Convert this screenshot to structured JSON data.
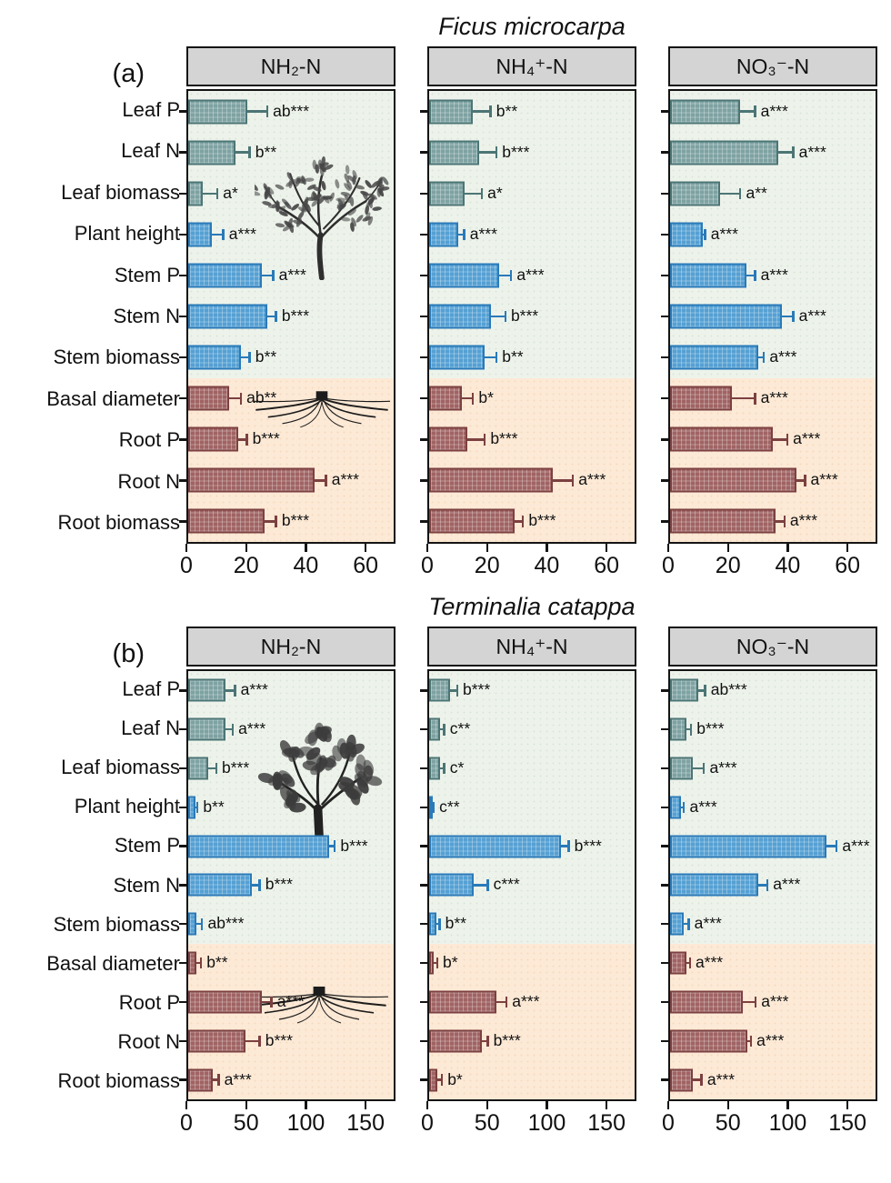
{
  "panels": [
    {
      "letter": "(a)",
      "title": "Ficus microcarpa"
    },
    {
      "letter": "(b)",
      "title": "Terminalia catappa"
    }
  ],
  "category_groups": [
    "leaf",
    "leaf",
    "leaf",
    "stem",
    "stem",
    "stem",
    "stem",
    "root",
    "root",
    "root",
    "root"
  ],
  "colors": {
    "leaf_fill": "#7ea2a2",
    "leaf_border": "#4c7575",
    "stem_fill": "#55a0d3",
    "stem_border": "#2a7ab8",
    "root_fill": "#a06363",
    "root_border": "#7c4040",
    "shoot_zone_bg": "#edf3eb",
    "root_zone_bg": "#fce9d6",
    "header_bg": "#d4d4d4",
    "frame": "#141414"
  },
  "chart_data": [
    {
      "type": "bar",
      "orientation": "horizontal",
      "panel": "(a)",
      "panel_title": "Ficus microcarpa",
      "group_header": "NH₂-N",
      "categories": [
        "Leaf P",
        "Leaf N",
        "Leaf biomass",
        "Plant height",
        "Stem P",
        "Stem N",
        "Stem biomass",
        "Basal diameter",
        "Root P",
        "Root N",
        "Root biomass"
      ],
      "values": [
        20,
        16,
        5,
        8,
        25,
        27,
        18,
        14,
        17,
        43,
        26
      ],
      "errors": [
        7,
        5,
        5,
        4,
        4,
        3,
        3,
        4,
        3,
        4,
        4
      ],
      "sig_labels": [
        "ab***",
        "b**",
        "a*",
        "a***",
        "a***",
        "b***",
        "b**",
        "ab**",
        "b***",
        "a***",
        "b***"
      ],
      "xlim": [
        0,
        70
      ],
      "xticks": [
        0,
        20,
        40,
        60
      ]
    },
    {
      "type": "bar",
      "orientation": "horizontal",
      "panel": "(a)",
      "panel_title": "Ficus microcarpa",
      "group_header": "NH₄⁺-N",
      "categories": [
        "Leaf P",
        "Leaf N",
        "Leaf biomass",
        "Plant height",
        "Stem P",
        "Stem N",
        "Stem biomass",
        "Basal diameter",
        "Root P",
        "Root N",
        "Root biomass"
      ],
      "values": [
        15,
        17,
        12,
        10,
        24,
        21,
        19,
        11,
        13,
        42,
        29
      ],
      "errors": [
        6,
        6,
        6,
        2,
        4,
        5,
        4,
        4,
        6,
        7,
        3
      ],
      "sig_labels": [
        "b**",
        "b***",
        "a*",
        "a***",
        "a***",
        "b***",
        "b**",
        "b*",
        "b***",
        "a***",
        "b***"
      ],
      "xlim": [
        0,
        70
      ],
      "xticks": [
        0,
        20,
        40,
        60
      ]
    },
    {
      "type": "bar",
      "orientation": "horizontal",
      "panel": "(a)",
      "panel_title": "Ficus microcarpa",
      "group_header": "NO₃⁻-N",
      "categories": [
        "Leaf P",
        "Leaf N",
        "Leaf biomass",
        "Plant height",
        "Stem P",
        "Stem N",
        "Stem biomass",
        "Basal diameter",
        "Root P",
        "Root N",
        "Root biomass"
      ],
      "values": [
        24,
        37,
        17,
        11,
        26,
        38,
        30,
        21,
        35,
        43,
        36
      ],
      "errors": [
        5,
        5,
        7,
        1,
        3,
        4,
        2,
        8,
        5,
        3,
        3
      ],
      "sig_labels": [
        "a***",
        "a***",
        "a**",
        "a***",
        "a***",
        "a***",
        "a***",
        "a***",
        "a***",
        "a***",
        "a***"
      ],
      "xlim": [
        0,
        70
      ],
      "xticks": [
        0,
        20,
        40,
        60
      ]
    },
    {
      "type": "bar",
      "orientation": "horizontal",
      "panel": "(b)",
      "panel_title": "Terminalia catappa",
      "group_header": "NH₂-N",
      "categories": [
        "Leaf P",
        "Leaf N",
        "Leaf biomass",
        "Plant height",
        "Stem P",
        "Stem N",
        "Stem biomass",
        "Basal diameter",
        "Root P",
        "Root N",
        "Root biomass"
      ],
      "values": [
        32,
        32,
        17,
        6,
        120,
        54,
        7,
        7,
        63,
        49,
        21
      ],
      "errors": [
        8,
        6,
        7,
        2,
        5,
        7,
        5,
        4,
        8,
        12,
        5
      ],
      "sig_labels": [
        "a***",
        "a***",
        "b***",
        "b**",
        "b***",
        "b***",
        "ab***",
        "b**",
        "a***",
        "b***",
        "a***"
      ],
      "xlim": [
        0,
        175
      ],
      "xticks": [
        0,
        50,
        100,
        150
      ]
    },
    {
      "type": "bar",
      "orientation": "horizontal",
      "panel": "(b)",
      "panel_title": "Terminalia catappa",
      "group_header": "NH₄⁺-N",
      "categories": [
        "Leaf P",
        "Leaf N",
        "Leaf biomass",
        "Plant height",
        "Stem P",
        "Stem N",
        "Stem biomass",
        "Basal diameter",
        "Root P",
        "Root N",
        "Root biomass"
      ],
      "values": [
        18,
        9,
        9,
        2,
        112,
        38,
        6,
        4,
        57,
        45,
        7
      ],
      "errors": [
        6,
        4,
        4,
        2,
        7,
        12,
        3,
        3,
        9,
        5,
        4
      ],
      "sig_labels": [
        "b***",
        "c**",
        "c*",
        "c**",
        "b***",
        "c***",
        "b**",
        "b*",
        "a***",
        "b***",
        "b*"
      ],
      "xlim": [
        0,
        175
      ],
      "xticks": [
        0,
        50,
        100,
        150
      ]
    },
    {
      "type": "bar",
      "orientation": "horizontal",
      "panel": "(b)",
      "panel_title": "Terminalia catappa",
      "group_header": "NO₃⁻-N",
      "categories": [
        "Leaf P",
        "Leaf N",
        "Leaf biomass",
        "Plant height",
        "Stem P",
        "Stem N",
        "Stem biomass",
        "Basal diameter",
        "Root P",
        "Root N",
        "Root biomass"
      ],
      "values": [
        24,
        14,
        19,
        9,
        133,
        75,
        12,
        14,
        62,
        66,
        19
      ],
      "errors": [
        6,
        4,
        10,
        3,
        9,
        8,
        4,
        3,
        11,
        3,
        8
      ],
      "sig_labels": [
        "ab***",
        "b***",
        "a***",
        "a***",
        "a***",
        "a***",
        "a***",
        "a***",
        "a***",
        "a***",
        "a***"
      ],
      "xlim": [
        0,
        175
      ],
      "xticks": [
        0,
        50,
        100,
        150
      ]
    }
  ]
}
